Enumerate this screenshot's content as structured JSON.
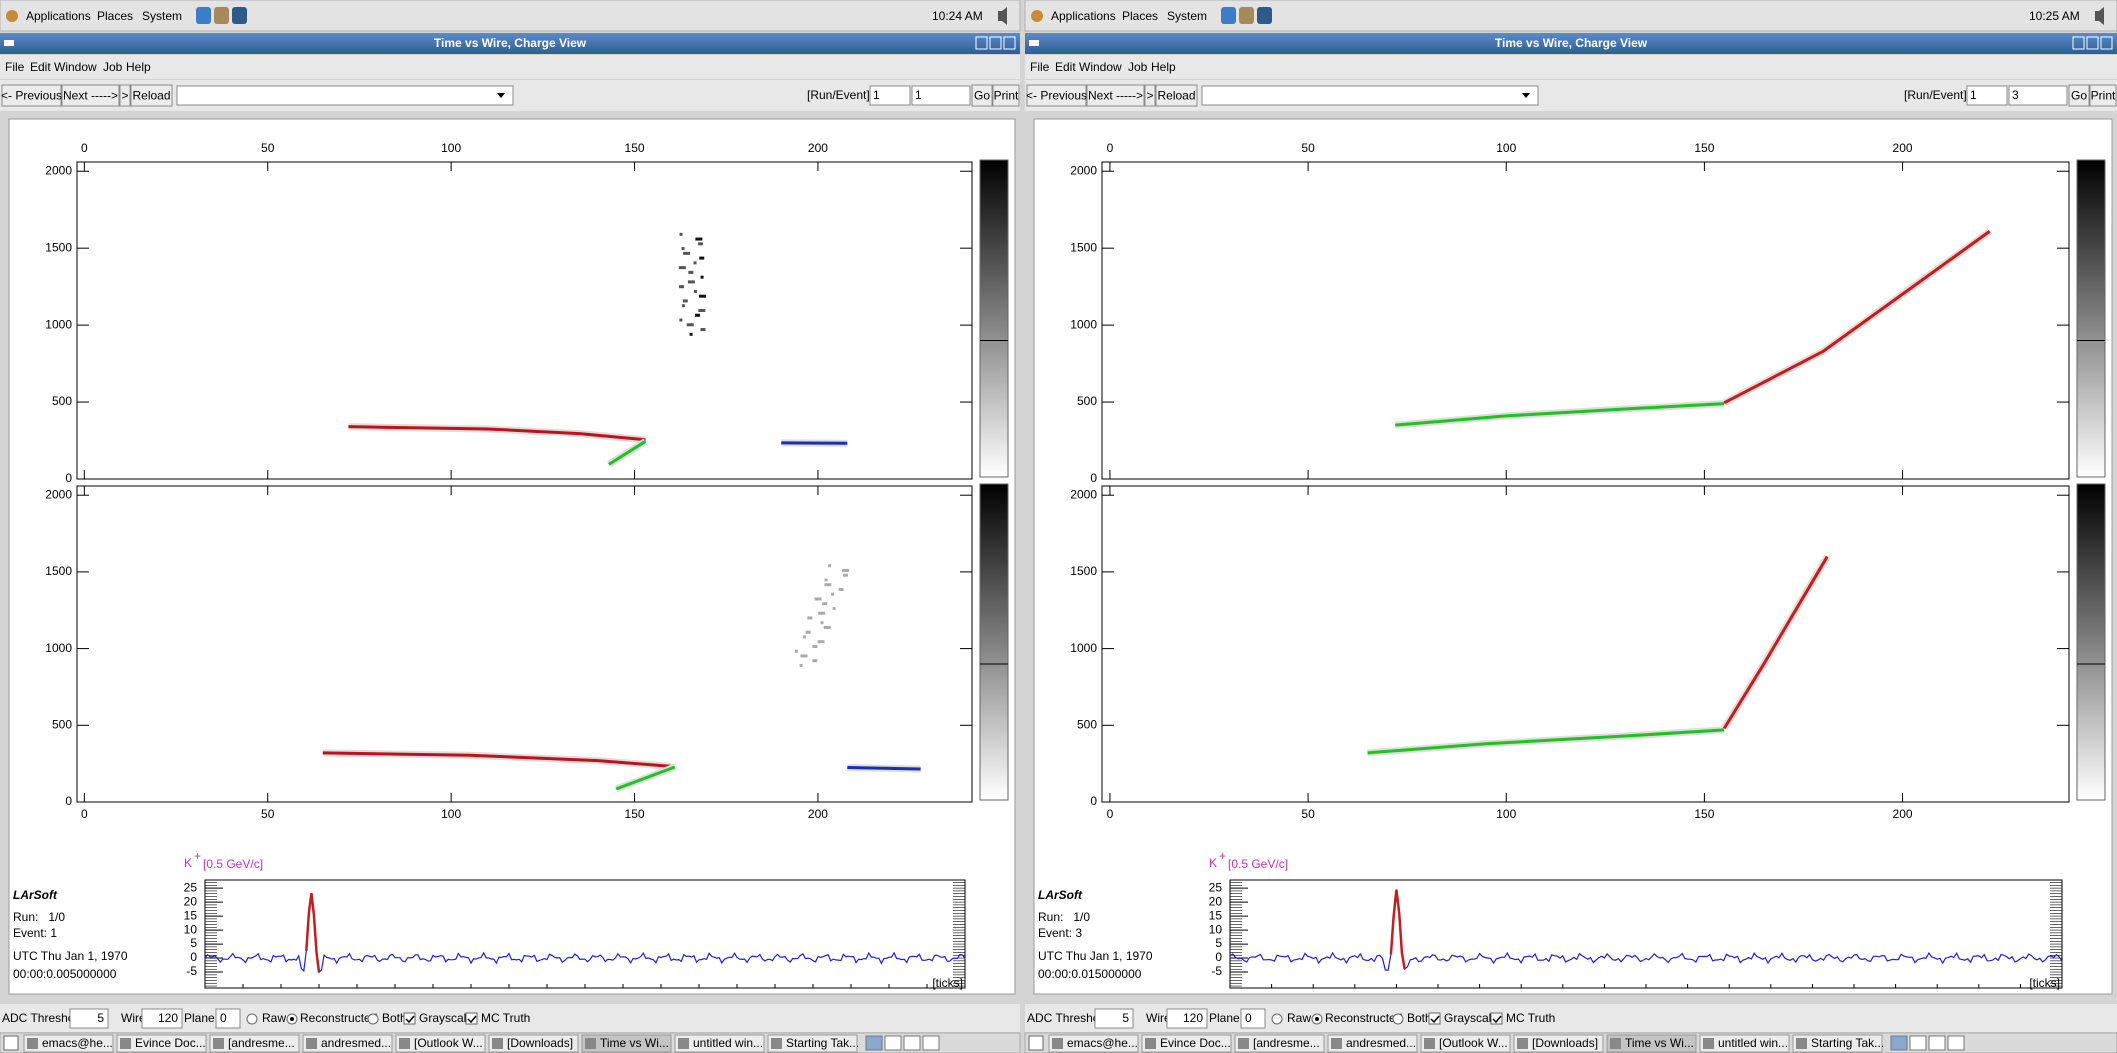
{
  "panel": {
    "menus": [
      "Applications",
      "Places",
      "System"
    ]
  },
  "window": {
    "title": "Time vs Wire, Charge View",
    "menu": [
      "File",
      "Edit",
      "Window",
      "Job",
      "Help"
    ],
    "toolbar": {
      "previous": "<- Previous",
      "next": "Next ----->",
      "step": ">",
      "reload": "Reload",
      "run_event_label": "[Run/Event]=",
      "go": "Go",
      "print": "Print"
    }
  },
  "plot": {
    "xlim": [
      -2,
      242
    ],
    "ylim": [
      0,
      2060
    ],
    "xticks": [
      0,
      50,
      100,
      150,
      200
    ],
    "yticks": [
      0,
      500,
      1000,
      1500,
      2000
    ]
  },
  "waveform": {
    "particle": "K",
    "charge": "+",
    "momentum": "[0.5 GeV/c]",
    "ylim": [
      -10.7,
      27.9
    ],
    "yticks": [
      25,
      20,
      15,
      10,
      5,
      0,
      -5
    ],
    "x_unit": "[ticks]"
  },
  "info": {
    "program": "LArSoft",
    "date": "UTC Thu Jan 1, 1970"
  },
  "controls": {
    "adc_label": "ADC Threshold",
    "adc": 5,
    "wire_label": "Wire",
    "wire": 120,
    "plane_label": "Plane",
    "plane": 0,
    "raw": "Raw",
    "reconstructed": "Reconstructed",
    "both": "Both",
    "grayscale": "Grayscale",
    "mc_truth": "MC Truth"
  },
  "taskbar": [
    "emacs@he...",
    "Evince Doc...",
    "[andresme...",
    "andresmed...",
    "[Outlook W...",
    "[Downloads]",
    "Time vs Wi...",
    "untitled win...",
    "Starting Tak..."
  ],
  "screens": [
    {
      "clock": "10:24 AM",
      "run": "1",
      "event": "1",
      "run_line": "Run:   1/0",
      "event_line": "Event: 1",
      "time": "00:00:0.005000000"
    },
    {
      "clock": "10:25 AM",
      "run": "1",
      "event": "3",
      "run_line": "Run:   1/0",
      "event_line": "Event: 3",
      "time": "00:00:0.015000000"
    }
  ]
}
